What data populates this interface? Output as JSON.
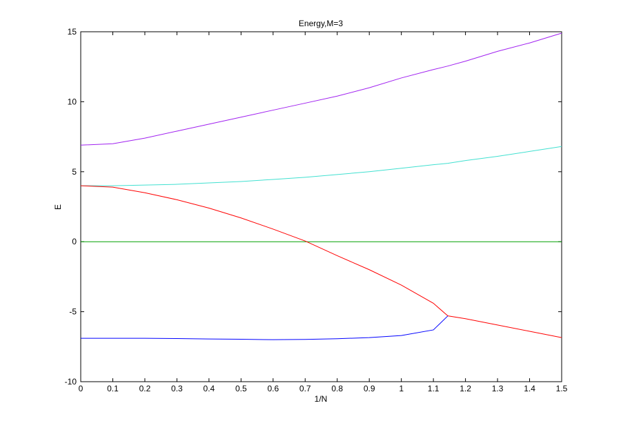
{
  "chart_data": {
    "type": "line",
    "title": "Energy,M=3",
    "x_label": "1/N",
    "y_label": "E",
    "x": [
      0,
      0.1,
      0.2,
      0.3,
      0.4,
      0.5,
      0.6,
      0.7,
      0.8,
      0.9,
      1,
      1.1,
      1.145,
      1.2,
      1.3,
      1.4,
      1.5
    ],
    "series": [
      {
        "color": "#a020f0",
        "values": [
          6.9,
          7.0,
          7.4,
          7.9,
          8.4,
          8.9,
          9.4,
          9.9,
          10.4,
          11.0,
          11.7,
          12.3,
          12.55,
          12.9,
          13.6,
          14.2,
          14.9
        ]
      },
      {
        "color": "#40e0d0",
        "values": [
          4.0,
          4.0,
          4.05,
          4.1,
          4.2,
          4.3,
          4.45,
          4.6,
          4.8,
          5.0,
          5.25,
          5.5,
          5.6,
          5.8,
          6.1,
          6.45,
          6.8
        ]
      },
      {
        "color": "#00a000",
        "values": [
          0,
          0,
          0,
          0,
          0,
          0,
          0,
          0,
          0,
          0,
          0,
          0,
          0,
          0,
          0,
          0,
          0
        ]
      },
      {
        "color": "#ff0000",
        "values": [
          4.0,
          3.9,
          3.5,
          3.0,
          2.4,
          1.7,
          0.9,
          0.05,
          -1.0,
          -2.0,
          -3.1,
          -4.4,
          -5.3,
          -5.5,
          -5.95,
          -6.4,
          -6.85
        ]
      },
      {
        "color": "#0000ff",
        "values": [
          -6.9,
          -6.9,
          -6.9,
          -6.92,
          -6.95,
          -6.97,
          -7.0,
          -6.98,
          -6.93,
          -6.85,
          -6.7,
          -6.3,
          -5.3,
          null,
          null,
          null,
          null
        ]
      }
    ],
    "xlim": [
      0,
      1.5
    ],
    "xticks": [
      0,
      0.1,
      0.2,
      0.3,
      0.4,
      0.5,
      0.6,
      0.7,
      0.8,
      0.9,
      1,
      1.1,
      1.2,
      1.3,
      1.4,
      1.5
    ],
    "ylim": [
      -10,
      15
    ],
    "yticks": [
      -10,
      -5,
      0,
      5,
      10,
      15
    ],
    "grid": false
  }
}
